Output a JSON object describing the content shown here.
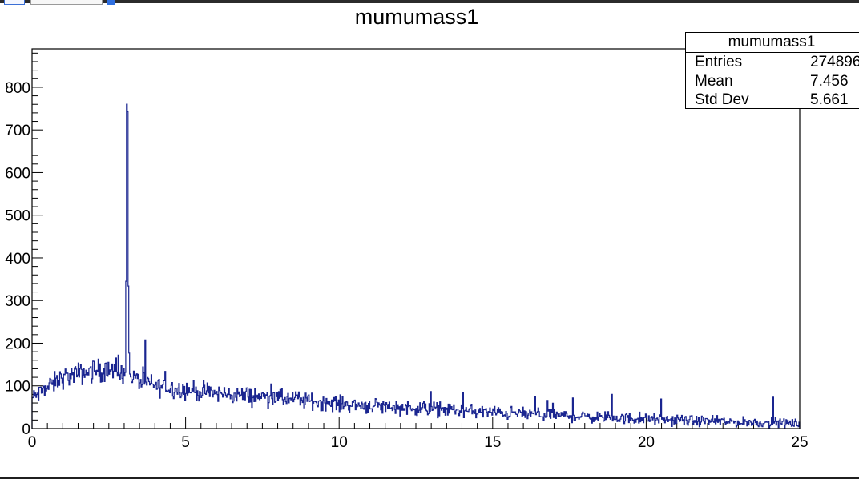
{
  "chart_data": {
    "type": "histogram",
    "title": "mumumass1",
    "xlim": [
      0,
      25
    ],
    "ylim": [
      0,
      890
    ],
    "x_ticks": [
      0,
      5,
      10,
      15,
      20,
      25
    ],
    "y_ticks": [
      0,
      100,
      200,
      300,
      400,
      500,
      600,
      700,
      800
    ],
    "bin_width": 0.025,
    "peak": {
      "x": 3.1,
      "y": 850
    },
    "envelope": [
      {
        "x": 0.0,
        "y": 70
      },
      {
        "x": 1.0,
        "y": 120
      },
      {
        "x": 2.0,
        "y": 135
      },
      {
        "x": 2.5,
        "y": 135
      },
      {
        "x": 3.0,
        "y": 125
      },
      {
        "x": 4.0,
        "y": 100
      },
      {
        "x": 6.0,
        "y": 82
      },
      {
        "x": 8.0,
        "y": 72
      },
      {
        "x": 10.0,
        "y": 58
      },
      {
        "x": 12.0,
        "y": 50
      },
      {
        "x": 15.0,
        "y": 38
      },
      {
        "x": 18.0,
        "y": 28
      },
      {
        "x": 20.0,
        "y": 22
      },
      {
        "x": 23.0,
        "y": 15
      },
      {
        "x": 25.0,
        "y": 12
      }
    ],
    "line_color": "#1a2590",
    "grid": false,
    "stats": {
      "title": "mumumass1",
      "entries_label": "Entries",
      "entries_value": "274896",
      "mean_label": "Mean",
      "mean_value": "7.456",
      "std_label": "Std Dev",
      "std_value": "5.661"
    }
  }
}
